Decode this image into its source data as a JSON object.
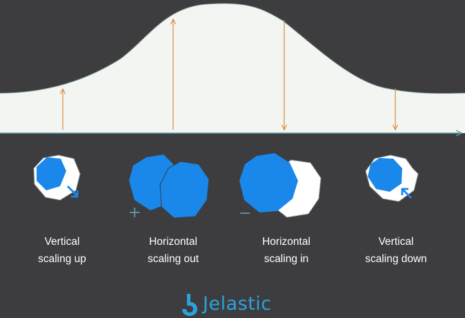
{
  "colors": {
    "background": "#3d3d3f",
    "curve_fill": "#f3f5f3",
    "curve_stroke": "#7a9a96",
    "arrow": "#d98a3a",
    "axis": "#5b9aa0",
    "node_blue": "#1a87ea",
    "node_white": "#ffffff",
    "sign": "#5b9aa0",
    "brand": "#2aa3dd"
  },
  "stages": [
    {
      "line1": "Vertical",
      "line2": "scaling up",
      "load_arrow": "up",
      "icon": "vertical-up"
    },
    {
      "line1": "Horizontal",
      "line2": "scaling out",
      "load_arrow": "up",
      "icon": "horizontal-out",
      "sign": "+"
    },
    {
      "line1": "Horizontal",
      "line2": "scaling in",
      "load_arrow": "down",
      "icon": "horizontal-in",
      "sign": "−"
    },
    {
      "line1": "Vertical",
      "line2": "scaling down",
      "load_arrow": "down",
      "icon": "vertical-down"
    }
  ],
  "brand": {
    "name": "Jelastic"
  }
}
